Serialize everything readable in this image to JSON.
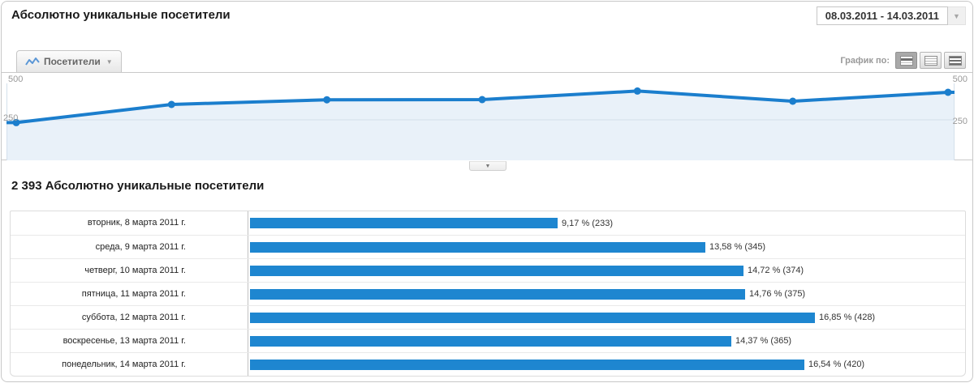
{
  "header": {
    "title": "Абсолютно уникальные посетители",
    "date_range": "08.03.2011 - 14.03.2011"
  },
  "toolbar": {
    "tab_label": "Посетители",
    "graph_by_label": "График по:",
    "icons": {
      "tab_icon": "line-chart-icon",
      "graph_buttons": [
        "bars-sparse-icon",
        "bars-medium-icon",
        "bars-dense-icon"
      ],
      "collapse": "chevron-down-icon"
    }
  },
  "colors": {
    "line": "#1b7ecd",
    "point": "#1b7ecd",
    "area_fill": "#e9f1f9",
    "bar": "#1e86d0",
    "grid": "#d3dfe9"
  },
  "chart_data": {
    "type": "line",
    "title": "Посетители",
    "x": [
      "вторник, 8 марта 2011 г.",
      "среда, 9 марта 2011 г.",
      "четверг, 10 марта 2011 г.",
      "пятница, 11 марта 2011 г.",
      "суббота, 12 марта 2011 г.",
      "воскресенье, 13 марта 2011 г.",
      "понедельник, 14 марта 2011 г."
    ],
    "series": [
      {
        "name": "Посетители",
        "values": [
          233,
          345,
          374,
          375,
          428,
          365,
          420
        ]
      }
    ],
    "ylim": [
      0,
      500
    ],
    "yticks": [
      500,
      250
    ],
    "grid": "horizontal line at 250 only, axis labels on both sides",
    "legend_position": "tab-top-left"
  },
  "summary": {
    "total": "2 393",
    "label": "Абсолютно уникальные посетители"
  },
  "table": {
    "rows": [
      {
        "label": "вторник, 8 марта 2011 г.",
        "pct": 9.17,
        "count": 233,
        "value": "9,17 % (233)"
      },
      {
        "label": "среда, 9 марта 2011 г.",
        "pct": 13.58,
        "count": 345,
        "value": "13,58 % (345)"
      },
      {
        "label": "четверг, 10 марта 2011 г.",
        "pct": 14.72,
        "count": 374,
        "value": "14,72 % (374)"
      },
      {
        "label": "пятница, 11 марта 2011 г.",
        "pct": 14.76,
        "count": 375,
        "value": "14,76 % (375)"
      },
      {
        "label": "суббота, 12 марта 2011 г.",
        "pct": 16.85,
        "count": 428,
        "value": "16,85 % (428)"
      },
      {
        "label": "воскресенье, 13 марта 2011 г.",
        "pct": 14.37,
        "count": 365,
        "value": "14,37 % (365)"
      },
      {
        "label": "понедельник, 14 марта 2011 г.",
        "pct": 16.54,
        "count": 420,
        "value": "16,54 % (420)"
      }
    ]
  }
}
